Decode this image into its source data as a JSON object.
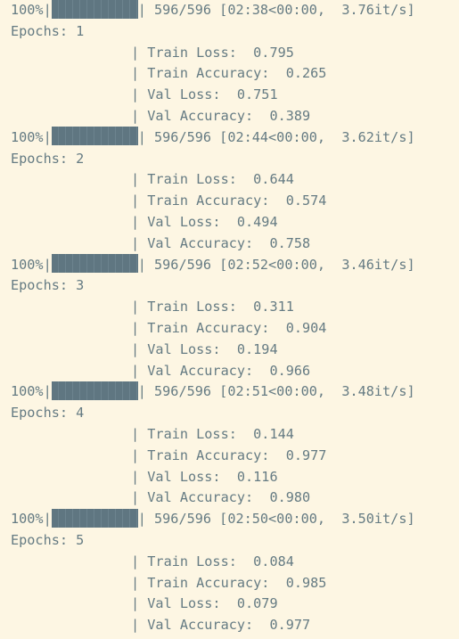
{
  "colors": {
    "background": "#fdf6e3",
    "text": "#657b83",
    "bar": "#5f7681"
  },
  "epochs": [
    {
      "progress_pct": "100%",
      "progress_fraction": 1.0,
      "progress_suffix": "| 596/596 [02:38<00:00,  3.76it/s]",
      "epoch_line": "Epochs: 1",
      "metrics": [
        "| Train Loss:  0.795",
        "| Train Accuracy:  0.265",
        "| Val Loss:  0.751",
        "| Val Accuracy:  0.389"
      ]
    },
    {
      "progress_pct": "100%",
      "progress_fraction": 1.0,
      "progress_suffix": "| 596/596 [02:44<00:00,  3.62it/s]",
      "epoch_line": "Epochs: 2",
      "metrics": [
        "| Train Loss:  0.644",
        "| Train Accuracy:  0.574",
        "| Val Loss:  0.494",
        "| Val Accuracy:  0.758"
      ]
    },
    {
      "progress_pct": "100%",
      "progress_fraction": 1.0,
      "progress_suffix": "| 596/596 [02:52<00:00,  3.46it/s]",
      "epoch_line": "Epochs: 3",
      "metrics": [
        "| Train Loss:  0.311",
        "| Train Accuracy:  0.904",
        "| Val Loss:  0.194",
        "| Val Accuracy:  0.966"
      ]
    },
    {
      "progress_pct": "100%",
      "progress_fraction": 1.0,
      "progress_suffix": "| 596/596 [02:51<00:00,  3.48it/s]",
      "epoch_line": "Epochs: 4",
      "metrics": [
        "| Train Loss:  0.144",
        "| Train Accuracy:  0.977",
        "| Val Loss:  0.116",
        "| Val Accuracy:  0.980"
      ]
    },
    {
      "progress_pct": "100%",
      "progress_fraction": 1.0,
      "progress_suffix": "| 596/596 [02:50<00:00,  3.50it/s]",
      "epoch_line": "Epochs: 5",
      "metrics": [
        "| Train Loss:  0.084",
        "| Train Accuracy:  0.985",
        "| Val Loss:  0.079",
        "| Val Accuracy:  0.977"
      ]
    }
  ]
}
